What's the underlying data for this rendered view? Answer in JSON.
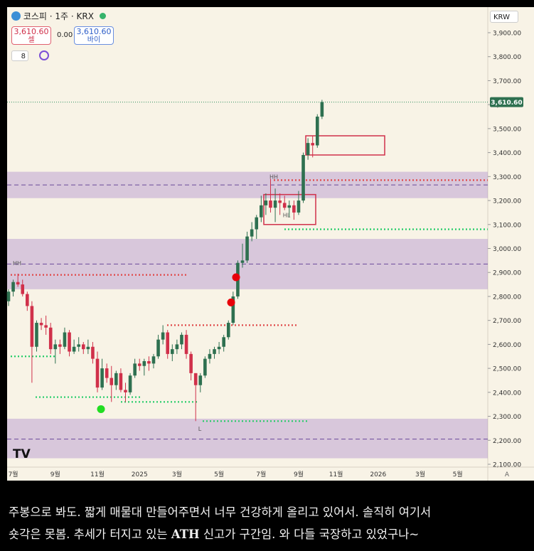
{
  "chart_data": {
    "type": "candlestick",
    "symbol": "코스피 · 1주 · KRX",
    "sell_price": "3,610.60",
    "sell_label": "셀",
    "spread": "0.00",
    "buy_price": "3,610.60",
    "buy_label": "바이",
    "indicator_count": "8",
    "currency": "KRW",
    "last_price": {
      "value": 3610.6,
      "label": "3,610.60"
    },
    "up_color": "#2e7050",
    "down_color": "#d0304a",
    "categories": [
      null,
      "7월",
      null,
      null,
      null,
      null,
      null,
      null,
      null,
      null,
      "9월",
      null,
      null,
      null,
      null,
      null,
      null,
      null,
      null,
      "11월",
      null,
      null,
      null,
      null,
      null,
      null,
      null,
      null,
      "2025",
      null,
      null,
      null,
      null,
      null,
      null,
      null,
      "3월",
      null,
      null,
      null,
      null,
      null,
      null,
      null,
      null,
      "5월",
      null,
      null,
      null,
      null,
      null,
      null,
      null,
      null,
      "7월",
      null,
      null,
      null,
      null,
      null,
      null,
      null,
      "9월",
      null,
      null,
      null,
      null,
      null,
      null,
      null,
      "11월",
      null,
      null,
      null,
      null,
      null,
      null,
      null,
      null,
      "2026",
      null,
      null,
      null,
      null,
      null,
      null,
      null,
      null,
      "3월",
      null,
      null,
      null,
      null,
      null,
      null,
      null,
      "5월",
      null,
      null,
      null
    ],
    "ohlc": [
      [
        2780,
        2830,
        2760,
        2820
      ],
      [
        2820,
        2870,
        2800,
        2860
      ],
      [
        2860,
        2895,
        2840,
        2850
      ],
      [
        2850,
        2870,
        2800,
        2810
      ],
      [
        2810,
        2820,
        2740,
        2760
      ],
      [
        2760,
        2780,
        2440,
        2590
      ],
      [
        2590,
        2700,
        2570,
        2690
      ],
      [
        2690,
        2710,
        2660,
        2680
      ],
      [
        2680,
        2720,
        2640,
        2670
      ],
      [
        2670,
        2690,
        2560,
        2580
      ],
      [
        2580,
        2620,
        2520,
        2600
      ],
      [
        2600,
        2620,
        2560,
        2590
      ],
      [
        2590,
        2670,
        2580,
        2650
      ],
      [
        2650,
        2660,
        2550,
        2570
      ],
      [
        2570,
        2620,
        2560,
        2590
      ],
      [
        2590,
        2630,
        2570,
        2600
      ],
      [
        2600,
        2610,
        2560,
        2580
      ],
      [
        2580,
        2620,
        2560,
        2590
      ],
      [
        2590,
        2610,
        2520,
        2540
      ],
      [
        2540,
        2570,
        2400,
        2420
      ],
      [
        2420,
        2540,
        2410,
        2500
      ],
      [
        2500,
        2520,
        2440,
        2460
      ],
      [
        2460,
        2510,
        2360,
        2430
      ],
      [
        2430,
        2490,
        2410,
        2480
      ],
      [
        2480,
        2500,
        2400,
        2410
      ],
      [
        2410,
        2440,
        2360,
        2400
      ],
      [
        2400,
        2480,
        2390,
        2470
      ],
      [
        2470,
        2540,
        2460,
        2520
      ],
      [
        2520,
        2540,
        2490,
        2510
      ],
      [
        2510,
        2540,
        2470,
        2530
      ],
      [
        2530,
        2550,
        2490,
        2520
      ],
      [
        2520,
        2560,
        2500,
        2550
      ],
      [
        2550,
        2640,
        2540,
        2620
      ],
      [
        2620,
        2680,
        2600,
        2650
      ],
      [
        2650,
        2660,
        2540,
        2560
      ],
      [
        2560,
        2600,
        2530,
        2580
      ],
      [
        2580,
        2620,
        2560,
        2600
      ],
      [
        2600,
        2650,
        2580,
        2640
      ],
      [
        2640,
        2660,
        2540,
        2560
      ],
      [
        2560,
        2570,
        2450,
        2480
      ],
      [
        2480,
        2480,
        2280,
        2430
      ],
      [
        2430,
        2480,
        2400,
        2470
      ],
      [
        2470,
        2550,
        2460,
        2540
      ],
      [
        2540,
        2580,
        2520,
        2560
      ],
      [
        2560,
        2590,
        2540,
        2580
      ],
      [
        2580,
        2610,
        2560,
        2590
      ],
      [
        2590,
        2640,
        2570,
        2630
      ],
      [
        2630,
        2700,
        2620,
        2690
      ],
      [
        2690,
        2820,
        2680,
        2800
      ],
      [
        2800,
        2950,
        2790,
        2940
      ],
      [
        2940,
        3020,
        2920,
        2950
      ],
      [
        2950,
        3070,
        2940,
        3050
      ],
      [
        3050,
        3110,
        3030,
        3080
      ],
      [
        3080,
        3140,
        3040,
        3130
      ],
      [
        3130,
        3220,
        3110,
        3180
      ],
      [
        3180,
        3230,
        3140,
        3200
      ],
      [
        3200,
        3290,
        3150,
        3170
      ],
      [
        3170,
        3250,
        3110,
        3200
      ],
      [
        3200,
        3230,
        3140,
        3190
      ],
      [
        3190,
        3220,
        3160,
        3170
      ],
      [
        3170,
        3200,
        3130,
        3180
      ],
      [
        3180,
        3200,
        3120,
        3150
      ],
      [
        3150,
        3240,
        3140,
        3200
      ],
      [
        3200,
        3400,
        3190,
        3390
      ],
      [
        3390,
        3460,
        3370,
        3440
      ],
      [
        3440,
        3470,
        3380,
        3430
      ],
      [
        3430,
        3560,
        3420,
        3550
      ],
      [
        3550,
        3620,
        3540,
        3610.6
      ],
      null,
      null,
      null,
      null,
      null,
      null,
      null,
      null,
      null,
      null,
      null,
      null,
      null,
      null,
      null,
      null,
      null,
      null,
      null,
      null,
      null,
      null,
      null,
      null,
      null,
      null,
      null,
      null,
      null,
      null,
      null,
      null
    ],
    "ylim": [
      2100,
      3900
    ],
    "yticks": [
      {
        "value": 3900,
        "label": "3,900.00"
      },
      {
        "value": 3800,
        "label": "3,800.00"
      },
      {
        "value": 3700,
        "label": "3,700.00"
      },
      {
        "value": 3600,
        "label": "3,600.00"
      },
      {
        "value": 3500,
        "label": "3,500.00"
      },
      {
        "value": 3400,
        "label": "3,400.00"
      },
      {
        "value": 3300,
        "label": "3,300.00"
      },
      {
        "value": 3200,
        "label": "3,200.00"
      },
      {
        "value": 3100,
        "label": "3,100.00"
      },
      {
        "value": 3000,
        "label": "3,000.00"
      },
      {
        "value": 2900,
        "label": "2,900.00"
      },
      {
        "value": 2800,
        "label": "2,800.00"
      },
      {
        "value": 2700,
        "label": "2,700.00"
      },
      {
        "value": 2600,
        "label": "2,600.00"
      },
      {
        "value": 2500,
        "label": "2,500.00"
      },
      {
        "value": 2400,
        "label": "2,400.00"
      },
      {
        "value": 2300,
        "label": "2,300.00"
      },
      {
        "value": 2200,
        "label": "2,200.00"
      },
      {
        "value": 2100,
        "label": "2,100.00"
      }
    ],
    "zones": [
      {
        "from": 3320,
        "to": 3210,
        "mid": 3265
      },
      {
        "from": 3040,
        "to": 2830,
        "mid": 2935
      },
      {
        "from": 2290,
        "to": 2125,
        "mid": 2205
      }
    ],
    "levels": [
      {
        "value": 3285,
        "color": "#e04848"
      },
      {
        "value": 2890,
        "color": "#e04848"
      },
      {
        "value": 2680,
        "color": "#e04848"
      },
      {
        "value": 3080,
        "color": "#22cc66"
      },
      {
        "value": 2550,
        "color": "#22cc66"
      },
      {
        "value": 2380,
        "color": "#22cc66"
      },
      {
        "value": 2360,
        "color": "#22cc66"
      },
      {
        "value": 2280,
        "color": "#22cc66"
      }
    ],
    "boxes": [
      {
        "top": 3470,
        "bottom": 3390
      },
      {
        "top": 3225,
        "bottom": 3100
      }
    ],
    "markers": [
      {
        "value": 2880,
        "color": "#e8000a"
      },
      {
        "value": 2775,
        "color": "#e8000a"
      },
      {
        "value": 2330,
        "color": "#22dd22"
      }
    ],
    "annotations": [
      {
        "text": "HH",
        "value": 3290
      },
      {
        "text": "HL",
        "value": 3130
      },
      {
        "text": "HH",
        "value": 2930
      },
      {
        "text": "L",
        "value": 2240
      }
    ],
    "auto_label": "A",
    "caption": {
      "line1": "주봉으로 봐도. 짧게 매물대 만들어주면서 너무 건강하게 올리고 있어서. 솔직히 여기서",
      "line2a": "숏각은 못봄. 추세가 터지고 있는",
      "line2b": "ATH",
      "line2c": "신고가 구간임. 와 다들 국장하고 있었구나~"
    }
  }
}
